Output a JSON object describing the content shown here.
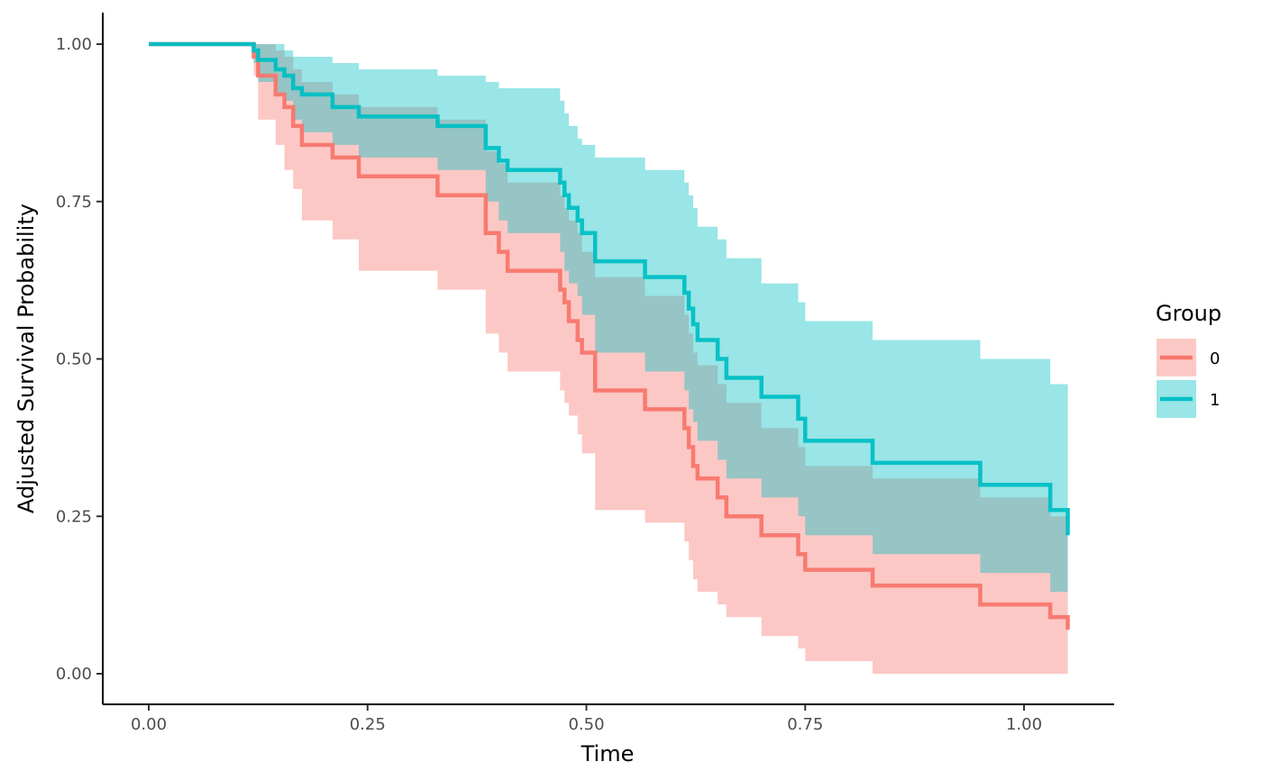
{
  "chart_data": {
    "type": "line",
    "subtype": "step-survival-with-confidence-bands",
    "xlabel": "Time",
    "ylabel": "Adjusted Survival Probability",
    "xlim": [
      -0.1,
      1.1
    ],
    "ylim": [
      -0.05,
      1.05
    ],
    "x_ticks": [
      0,
      0.25,
      0.5,
      0.75,
      1.0
    ],
    "x_tick_labels": [
      "0.00",
      "0.25",
      "0.50",
      "0.75",
      "1.00"
    ],
    "y_ticks": [
      0,
      0.25,
      0.5,
      0.75,
      1.0
    ],
    "y_tick_labels": [
      "0.00",
      "0.25",
      "0.50",
      "0.75",
      "1.00"
    ],
    "grid": false,
    "legend": {
      "title": "Group",
      "position": "right"
    },
    "series": [
      {
        "name": "0",
        "color": "#F8766D",
        "band_color": "#F8766D",
        "x": [
          0.0,
          0.12,
          0.125,
          0.145,
          0.155,
          0.165,
          0.175,
          0.21,
          0.24,
          0.33,
          0.385,
          0.4,
          0.41,
          0.47,
          0.475,
          0.48,
          0.49,
          0.495,
          0.51,
          0.567,
          0.612,
          0.617,
          0.622,
          0.627,
          0.65,
          0.66,
          0.7,
          0.742,
          0.75,
          0.827,
          0.95,
          1.03,
          1.05
        ],
        "y": [
          1.0,
          0.98,
          0.95,
          0.92,
          0.9,
          0.87,
          0.84,
          0.82,
          0.79,
          0.76,
          0.7,
          0.67,
          0.64,
          0.61,
          0.59,
          0.56,
          0.53,
          0.51,
          0.45,
          0.42,
          0.39,
          0.36,
          0.33,
          0.31,
          0.28,
          0.25,
          0.22,
          0.19,
          0.165,
          0.14,
          0.11,
          0.09,
          0.07
        ],
        "lower": [
          1.0,
          0.95,
          0.88,
          0.84,
          0.8,
          0.77,
          0.72,
          0.69,
          0.64,
          0.61,
          0.54,
          0.51,
          0.48,
          0.45,
          0.43,
          0.41,
          0.38,
          0.35,
          0.26,
          0.24,
          0.21,
          0.18,
          0.15,
          0.13,
          0.11,
          0.09,
          0.06,
          0.04,
          0.02,
          0.0,
          0.0,
          0.0,
          0.0
        ],
        "upper": [
          1.0,
          1.0,
          1.0,
          0.99,
          0.98,
          0.96,
          0.94,
          0.92,
          0.9,
          0.88,
          0.83,
          0.81,
          0.78,
          0.76,
          0.74,
          0.72,
          0.7,
          0.67,
          0.63,
          0.6,
          0.57,
          0.54,
          0.51,
          0.49,
          0.46,
          0.43,
          0.39,
          0.36,
          0.33,
          0.31,
          0.28,
          0.25,
          0.22
        ]
      },
      {
        "name": "1",
        "color": "#00BFC4",
        "band_color": "#00BFC4",
        "x": [
          0.0,
          0.12,
          0.125,
          0.145,
          0.155,
          0.165,
          0.175,
          0.21,
          0.24,
          0.33,
          0.385,
          0.4,
          0.41,
          0.47,
          0.475,
          0.48,
          0.49,
          0.495,
          0.51,
          0.567,
          0.612,
          0.617,
          0.622,
          0.627,
          0.65,
          0.66,
          0.7,
          0.742,
          0.75,
          0.827,
          0.95,
          1.03,
          1.05
        ],
        "y": [
          1.0,
          0.99,
          0.975,
          0.96,
          0.95,
          0.93,
          0.92,
          0.9,
          0.885,
          0.87,
          0.835,
          0.815,
          0.8,
          0.78,
          0.76,
          0.74,
          0.72,
          0.7,
          0.655,
          0.63,
          0.605,
          0.58,
          0.555,
          0.53,
          0.5,
          0.47,
          0.44,
          0.405,
          0.37,
          0.335,
          0.3,
          0.26,
          0.22
        ],
        "lower": [
          1.0,
          0.97,
          0.94,
          0.92,
          0.91,
          0.88,
          0.86,
          0.84,
          0.82,
          0.8,
          0.75,
          0.72,
          0.7,
          0.67,
          0.64,
          0.62,
          0.6,
          0.57,
          0.51,
          0.48,
          0.45,
          0.42,
          0.4,
          0.37,
          0.34,
          0.31,
          0.28,
          0.25,
          0.22,
          0.19,
          0.16,
          0.13,
          0.1
        ],
        "upper": [
          1.0,
          1.0,
          1.0,
          1.0,
          0.99,
          0.98,
          0.98,
          0.97,
          0.96,
          0.95,
          0.94,
          0.93,
          0.93,
          0.91,
          0.89,
          0.87,
          0.85,
          0.84,
          0.82,
          0.8,
          0.78,
          0.76,
          0.74,
          0.71,
          0.69,
          0.66,
          0.62,
          0.59,
          0.56,
          0.53,
          0.5,
          0.46,
          0.42
        ]
      }
    ]
  }
}
